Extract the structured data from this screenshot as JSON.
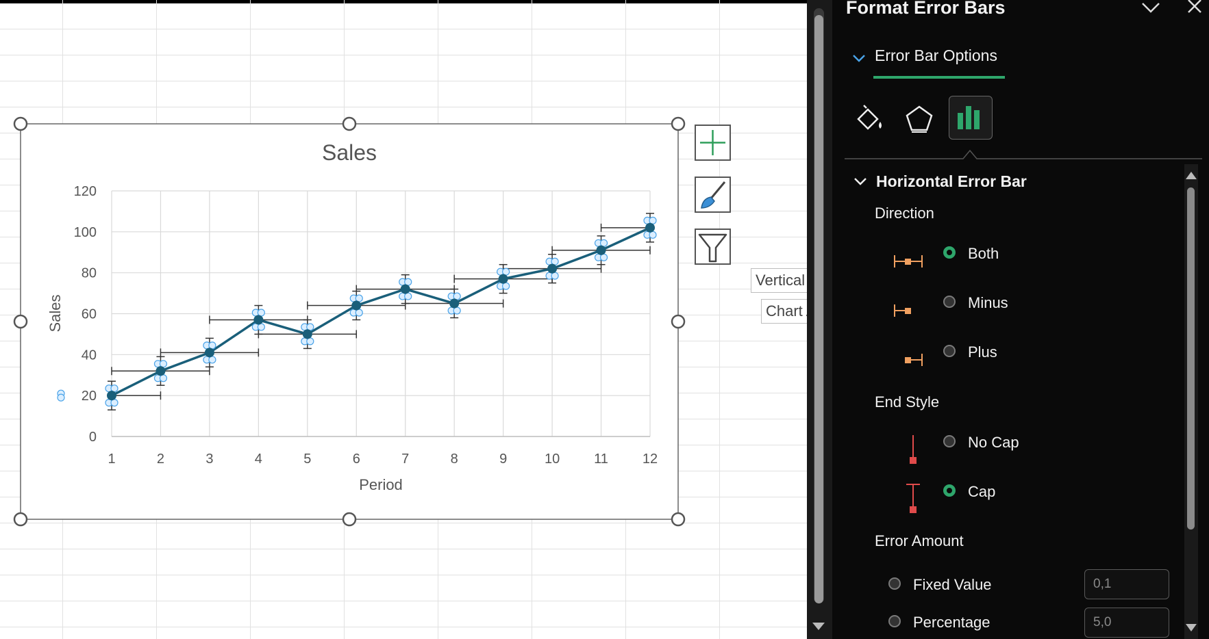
{
  "panel": {
    "title": "Format Error Bars",
    "tab_label": "Error Bar Options",
    "section_title": "Horizontal Error Bar",
    "direction_label": "Direction",
    "direction_options": [
      {
        "label": "Both",
        "selected": true
      },
      {
        "label": "Minus",
        "selected": false
      },
      {
        "label": "Plus",
        "selected": false
      }
    ],
    "end_style_label": "End Style",
    "end_style_options": [
      {
        "label": "No Cap",
        "selected": false
      },
      {
        "label": "Cap",
        "selected": true
      }
    ],
    "error_amount_label": "Error Amount",
    "error_amount_options": [
      {
        "label": "Fixed Value",
        "value": "0,1",
        "selected": false
      },
      {
        "label": "Percentage",
        "value": "5,0",
        "selected": false
      }
    ],
    "accent_color": "#2ea66b",
    "orange_color": "#f0a060",
    "red_color": "#e04b4b"
  },
  "tooltips": {
    "axis": "Vertical (Category) Axis",
    "area": "Chart Area"
  },
  "side_buttons": [
    "chart-elements-plus-icon",
    "chart-styles-brush-icon",
    "chart-filters-funnel-icon"
  ],
  "chart_data": {
    "type": "line",
    "title": "Sales",
    "xlabel": "Period",
    "ylabel": "Sales",
    "x": [
      1,
      2,
      3,
      4,
      5,
      6,
      7,
      8,
      9,
      10,
      11,
      12
    ],
    "y": [
      20,
      32,
      41,
      57,
      50,
      64,
      72,
      65,
      77,
      82,
      91,
      102
    ],
    "y_error": 7,
    "x_error": 1,
    "xlim": [
      1,
      12
    ],
    "ylim": [
      0,
      120
    ],
    "yticks": [
      0,
      20,
      40,
      60,
      80,
      100,
      120
    ],
    "grid": true,
    "line_color": "#1a5f7a"
  }
}
